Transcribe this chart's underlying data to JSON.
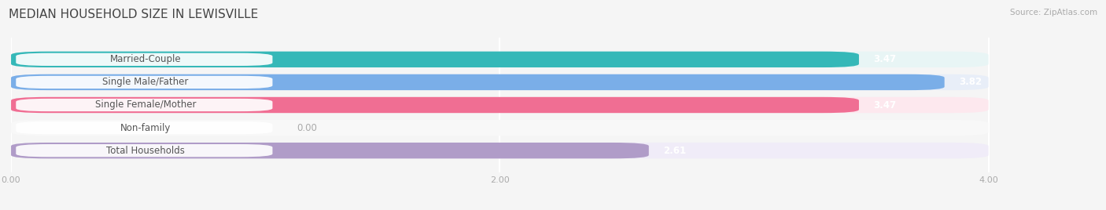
{
  "title": "MEDIAN HOUSEHOLD SIZE IN LEWISVILLE",
  "source": "Source: ZipAtlas.com",
  "categories": [
    "Married-Couple",
    "Single Male/Father",
    "Single Female/Mother",
    "Non-family",
    "Total Households"
  ],
  "values": [
    3.47,
    3.82,
    3.47,
    0.0,
    2.61
  ],
  "bar_colors": [
    "#35b8b8",
    "#7aaee8",
    "#f06e93",
    "#f5c99a",
    "#b09cc8"
  ],
  "bg_colors": [
    "#e8f5f5",
    "#e8eef8",
    "#fde8ee",
    "#f8f8f8",
    "#f0ecf8"
  ],
  "xlim": [
    0,
    4.3
  ],
  "data_xlim": [
    0,
    4.0
  ],
  "xticks": [
    0.0,
    2.0,
    4.0
  ],
  "xtick_labels": [
    "0.00",
    "2.00",
    "4.00"
  ],
  "title_fontsize": 11,
  "label_fontsize": 8.5,
  "value_fontsize": 8.5,
  "background_color": "#f5f5f5",
  "bar_height": 0.7,
  "bar_spacing": 1.0
}
